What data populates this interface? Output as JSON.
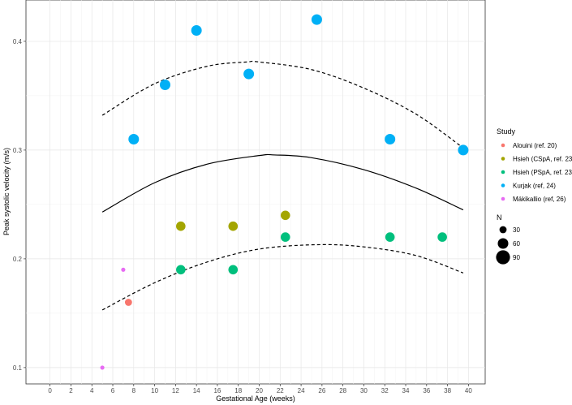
{
  "chart_data": {
    "type": "scatter",
    "title": "",
    "xlabel": "Gestational Age (weeks)",
    "ylabel": "Peak systolic velocity (m/s)",
    "xlim": [
      -2.3,
      41.6
    ],
    "ylim": [
      0.085,
      0.438
    ],
    "x_ticks": [
      0,
      2,
      4,
      6,
      8,
      10,
      12,
      14,
      16,
      18,
      20,
      22,
      24,
      26,
      28,
      30,
      32,
      34,
      36,
      38,
      40
    ],
    "y_ticks": [
      0.1,
      0.2,
      0.3,
      0.4
    ],
    "grid": true,
    "legend_position": "right",
    "color_legend_title": "Study",
    "size_legend_title": "N",
    "size_legend": [
      30,
      60,
      90
    ],
    "series": [
      {
        "name": "Alouini (ref. 20)",
        "color": "#F8766D",
        "points": [
          {
            "x": 7.5,
            "y": 0.16,
            "n": 30
          }
        ]
      },
      {
        "name": "Hsieh (CSpA, ref. 23)",
        "color": "#A3A500",
        "points": [
          {
            "x": 12.5,
            "y": 0.23,
            "n": 50
          },
          {
            "x": 17.5,
            "y": 0.23,
            "n": 50
          },
          {
            "x": 22.5,
            "y": 0.24,
            "n": 50
          }
        ]
      },
      {
        "name": "Hsieh (PSpA, ref. 23)",
        "color": "#00BF7D",
        "points": [
          {
            "x": 12.5,
            "y": 0.19,
            "n": 50
          },
          {
            "x": 17.5,
            "y": 0.19,
            "n": 50
          },
          {
            "x": 22.5,
            "y": 0.22,
            "n": 50
          },
          {
            "x": 32.5,
            "y": 0.22,
            "n": 50
          },
          {
            "x": 37.5,
            "y": 0.22,
            "n": 50
          }
        ]
      },
      {
        "name": "Kurjak (ref, 24)",
        "color": "#00B0F6",
        "points": [
          {
            "x": 8,
            "y": 0.31,
            "n": 60
          },
          {
            "x": 11,
            "y": 0.36,
            "n": 60
          },
          {
            "x": 14,
            "y": 0.41,
            "n": 60
          },
          {
            "x": 19,
            "y": 0.37,
            "n": 60
          },
          {
            "x": 25.5,
            "y": 0.42,
            "n": 60
          },
          {
            "x": 32.5,
            "y": 0.31,
            "n": 60
          },
          {
            "x": 39.5,
            "y": 0.3,
            "n": 60
          }
        ]
      },
      {
        "name": "Mäkikallio (ref, 26)",
        "color": "#E76BF3",
        "points": [
          {
            "x": 5,
            "y": 0.1,
            "n": 4
          },
          {
            "x": 7,
            "y": 0.19,
            "n": 4
          }
        ]
      }
    ],
    "lines": [
      {
        "style": "solid",
        "x": [
          5,
          10,
          15,
          20,
          21.5,
          25,
          30,
          35,
          39.5
        ],
        "y": [
          0.243,
          0.27,
          0.287,
          0.295,
          0.2955,
          0.293,
          0.282,
          0.265,
          0.245
        ]
      },
      {
        "style": "dashed",
        "x": [
          5,
          10,
          15,
          18.8,
          20,
          25,
          30,
          35,
          39.5
        ],
        "y": [
          0.332,
          0.361,
          0.377,
          0.381,
          0.381,
          0.374,
          0.357,
          0.333,
          0.302
        ]
      },
      {
        "style": "dashed",
        "x": [
          5,
          10,
          15,
          20,
          25.5,
          30,
          35,
          39.5
        ],
        "y": [
          0.153,
          0.178,
          0.197,
          0.209,
          0.213,
          0.211,
          0.203,
          0.187
        ]
      }
    ]
  }
}
